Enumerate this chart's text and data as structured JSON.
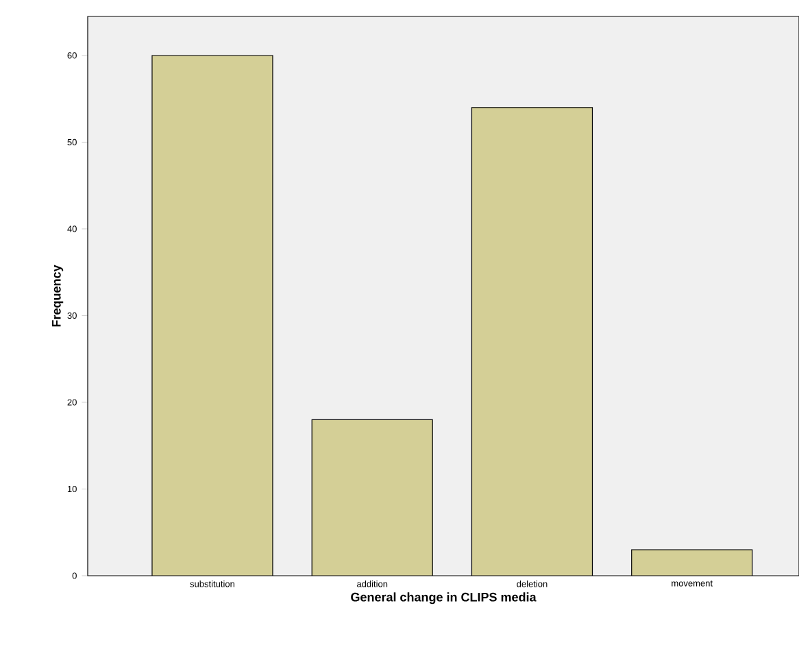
{
  "chart_data": {
    "type": "bar",
    "xlabel": "General change in CLIPS media",
    "ylabel": "Frequency",
    "categories": [
      "substitution",
      "addition",
      "deletion",
      "movement"
    ],
    "values": [
      60,
      18,
      54,
      3
    ],
    "color": "#d4cf96",
    "ylim": [
      0,
      64.5
    ],
    "yticks": [
      0,
      10,
      20,
      30,
      40,
      50,
      60
    ],
    "grid": false
  }
}
